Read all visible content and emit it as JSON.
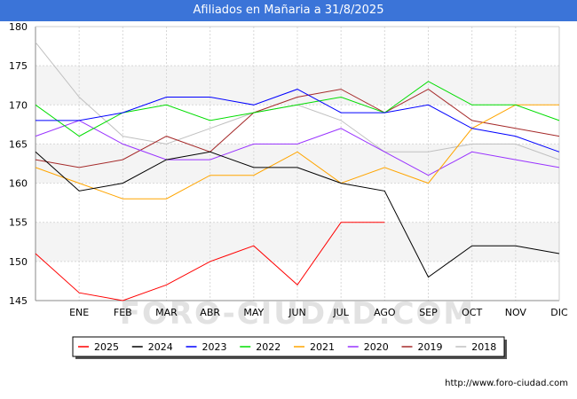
{
  "title": "Afiliados en Mañaria a 31/8/2025",
  "footer_url": "http://www.foro-ciudad.com",
  "watermark": "FORO-CIUDAD.COM",
  "colors": {
    "title_bg": "#3b74d8",
    "plot_band": "#f4f4f4",
    "grid": "#d8d8d8"
  },
  "chart_data": {
    "type": "line",
    "title": "Afiliados en Mañaria a 31/8/2025",
    "xlabel": "",
    "ylabel": "",
    "categories": [
      "",
      "ENE",
      "FEB",
      "MAR",
      "ABR",
      "MAY",
      "JUN",
      "JUL",
      "AGO",
      "SEP",
      "OCT",
      "NOV",
      "DIC"
    ],
    "ylim": [
      145,
      180
    ],
    "yticks": [
      145,
      150,
      155,
      160,
      165,
      170,
      175,
      180
    ],
    "legend_position": "bottom",
    "series": [
      {
        "name": "2025",
        "color": "#ff0000",
        "values": [
          151,
          146,
          145,
          147,
          150,
          152,
          147,
          155,
          155,
          null,
          null,
          null,
          null
        ]
      },
      {
        "name": "2024",
        "color": "#000000",
        "values": [
          164,
          159,
          160,
          163,
          164,
          162,
          162,
          160,
          159,
          148,
          152,
          152,
          151
        ]
      },
      {
        "name": "2023",
        "color": "#0000ff",
        "values": [
          168,
          168,
          169,
          171,
          171,
          170,
          172,
          169,
          169,
          170,
          167,
          166,
          164
        ]
      },
      {
        "name": "2022",
        "color": "#00dd00",
        "values": [
          170,
          166,
          169,
          170,
          168,
          169,
          170,
          171,
          169,
          173,
          170,
          170,
          168
        ]
      },
      {
        "name": "2021",
        "color": "#ffa500",
        "values": [
          162,
          160,
          158,
          158,
          161,
          161,
          164,
          160,
          162,
          160,
          167,
          170,
          170
        ]
      },
      {
        "name": "2020",
        "color": "#9933ff",
        "values": [
          166,
          168,
          165,
          163,
          163,
          165,
          165,
          167,
          164,
          161,
          164,
          163,
          162
        ]
      },
      {
        "name": "2019",
        "color": "#a52a2a",
        "values": [
          163,
          162,
          163,
          166,
          164,
          169,
          171,
          172,
          169,
          172,
          168,
          167,
          166
        ]
      },
      {
        "name": "2018",
        "color": "#c0c0c0",
        "values": [
          178,
          171,
          166,
          165,
          167,
          169,
          170,
          168,
          164,
          164,
          165,
          165,
          163
        ]
      }
    ]
  }
}
